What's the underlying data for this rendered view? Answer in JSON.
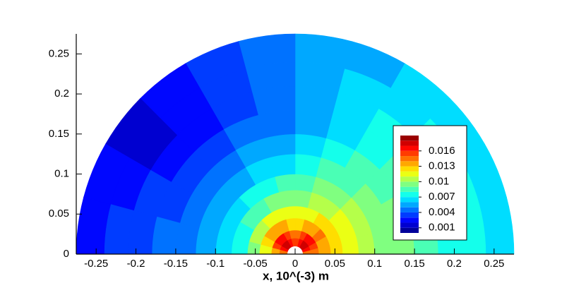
{
  "chart_data": {
    "type": "polar-contour",
    "x_label": "x, 10^(-3) m",
    "xlim": [
      -0.275,
      0.275
    ],
    "ylim": [
      0,
      0.275
    ],
    "xticks": [
      -0.25,
      -0.2,
      -0.15,
      -0.1,
      -0.05,
      0,
      0.05,
      0.1,
      0.15,
      0.2,
      0.25
    ],
    "yticks": [
      0,
      0.05,
      0.1,
      0.15,
      0.2,
      0.25
    ],
    "r_edges": [
      0.01,
      0.02,
      0.03,
      0.045,
      0.06,
      0.08,
      0.1,
      0.125,
      0.15,
      0.18,
      0.21,
      0.24,
      0.275
    ],
    "theta_edges": [
      0,
      15,
      30,
      45,
      60,
      75,
      90,
      105,
      120,
      135,
      150,
      165,
      180
    ],
    "values": [
      [
        0.014,
        0.016,
        0.017,
        0.017,
        0.016,
        0.015,
        0.015,
        0.016,
        0.017,
        0.017,
        0.016,
        0.014
      ],
      [
        0.014,
        0.015,
        0.016,
        0.016,
        0.015,
        0.014,
        0.014,
        0.015,
        0.016,
        0.016,
        0.015,
        0.013
      ],
      [
        0.013,
        0.013,
        0.014,
        0.013,
        0.013,
        0.012,
        0.012,
        0.013,
        0.013,
        0.013,
        0.012,
        0.011
      ],
      [
        0.012,
        0.012,
        0.012,
        0.012,
        0.011,
        0.011,
        0.011,
        0.011,
        0.011,
        0.01,
        0.01,
        0.009
      ],
      [
        0.011,
        0.011,
        0.011,
        0.01,
        0.01,
        0.009,
        0.009,
        0.009,
        0.008,
        0.008,
        0.007,
        0.007
      ],
      [
        0.01,
        0.01,
        0.01,
        0.009,
        0.009,
        0.008,
        0.008,
        0.007,
        0.007,
        0.006,
        0.006,
        0.006
      ],
      [
        0.009,
        0.009,
        0.009,
        0.008,
        0.008,
        0.007,
        0.006,
        0.006,
        0.005,
        0.005,
        0.005,
        0.005
      ],
      [
        0.009,
        0.009,
        0.008,
        0.008,
        0.007,
        0.006,
        0.005,
        0.005,
        0.004,
        0.004,
        0.004,
        0.004
      ],
      [
        0.008,
        0.008,
        0.008,
        0.007,
        0.006,
        0.005,
        0.004,
        0.004,
        0.003,
        0.003,
        0.003,
        0.004
      ],
      [
        0.007,
        0.007,
        0.007,
        0.007,
        0.006,
        0.005,
        0.004,
        0.003,
        0.002,
        0.002,
        0.003,
        0.003
      ],
      [
        0.007,
        0.007,
        0.007,
        0.006,
        0.006,
        0.005,
        0.004,
        0.003,
        0.002,
        0.001,
        0.002,
        0.003
      ],
      [
        0.006,
        0.006,
        0.006,
        0.006,
        0.005,
        0.005,
        0.004,
        0.003,
        0.002,
        0.001,
        0.002,
        0.002
      ]
    ],
    "levels": [
      0,
      0.001,
      0.002,
      0.003,
      0.004,
      0.005,
      0.006,
      0.007,
      0.008,
      0.009,
      0.01,
      0.011,
      0.012,
      0.013,
      0.014,
      0.015,
      0.016,
      0.017,
      0.018,
      0.019
    ],
    "colorbar_ticks": [
      0.016,
      0.013,
      0.01,
      0.007,
      0.004,
      0.001
    ]
  }
}
